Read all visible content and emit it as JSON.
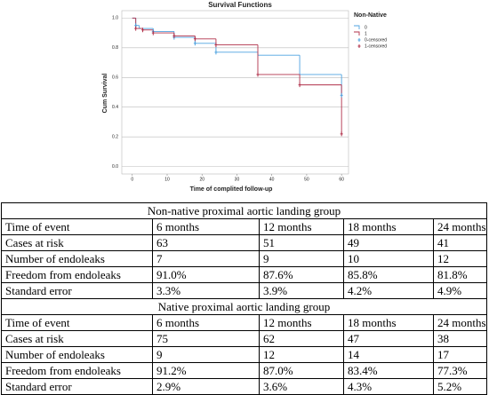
{
  "chart_data": {
    "type": "step",
    "title": "Survival Functions",
    "x_label": "Time of complited follow-up",
    "y_label": "Cum Survival",
    "legend_title": "Non-Native",
    "legend": "right",
    "xlim": [
      -3,
      62
    ],
    "ylim": [
      -0.05,
      1.05
    ],
    "xticks": [
      0,
      10,
      20,
      30,
      40,
      50,
      60
    ],
    "yticks": [
      {
        "value": 0,
        "label": "0.0"
      },
      0.2,
      0.4,
      0.6,
      0.8,
      {
        "value": 1,
        "label": "1.0"
      }
    ],
    "grid": true,
    "series": [
      {
        "name": "0",
        "color": "#4fa3e0",
        "marker": false,
        "x": [
          0,
          1,
          2,
          6,
          12,
          18,
          24,
          36,
          48,
          60
        ],
        "values": [
          1.0,
          0.95,
          0.93,
          0.91,
          0.87,
          0.83,
          0.77,
          0.75,
          0.62,
          0.48
        ]
      },
      {
        "name": "1",
        "color": "#b0304a",
        "marker": false,
        "x": [
          0,
          1,
          3,
          6,
          12,
          18,
          24,
          36,
          48,
          60
        ],
        "values": [
          1.0,
          0.93,
          0.92,
          0.9,
          0.88,
          0.86,
          0.82,
          0.62,
          0.55,
          0.22
        ]
      },
      {
        "name": "0-censored",
        "color": "#4fa3e0",
        "marker": true,
        "x": [
          1,
          6,
          12,
          18,
          24,
          60
        ],
        "values": [
          0.95,
          0.91,
          0.87,
          0.83,
          0.77,
          0.48
        ]
      },
      {
        "name": "1-censored",
        "color": "#b0304a",
        "marker": true,
        "x": [
          1,
          3,
          6,
          12,
          18,
          24,
          36,
          48,
          60
        ],
        "values": [
          0.93,
          0.92,
          0.9,
          0.88,
          0.86,
          0.82,
          0.62,
          0.55,
          0.22
        ]
      }
    ]
  },
  "table": {
    "sections": [
      {
        "heading": "Non-native proximal aortic landing group",
        "rows": [
          [
            "Time of event",
            "6 months",
            "12 months",
            "18 months",
            "24 months"
          ],
          [
            "Cases at risk",
            "63",
            "51",
            "49",
            "41"
          ],
          [
            "Number of endoleaks",
            "7",
            "9",
            "10",
            "12"
          ],
          [
            "Freedom from endoleaks",
            "91.0%",
            "87.6%",
            "85.8%",
            "81.8%"
          ],
          [
            "Standard error",
            "3.3%",
            "3.9%",
            "4.2%",
            "4.9%"
          ]
        ]
      },
      {
        "heading": "Native proximal aortic landing group",
        "rows": [
          [
            "Time of event",
            "6 months",
            "12 months",
            "18 months",
            "24 months"
          ],
          [
            "Cases at risk",
            "75",
            "62",
            "47",
            "38"
          ],
          [
            "Number of endoleaks",
            "9",
            "12",
            "14",
            "17"
          ],
          [
            "Freedom from endoleaks",
            "91.2%",
            "87.0%",
            "83.4%",
            "77.3%"
          ],
          [
            "Standard error",
            "2.9%",
            "3.6%",
            "4.3%",
            "5.2%"
          ]
        ]
      }
    ]
  }
}
